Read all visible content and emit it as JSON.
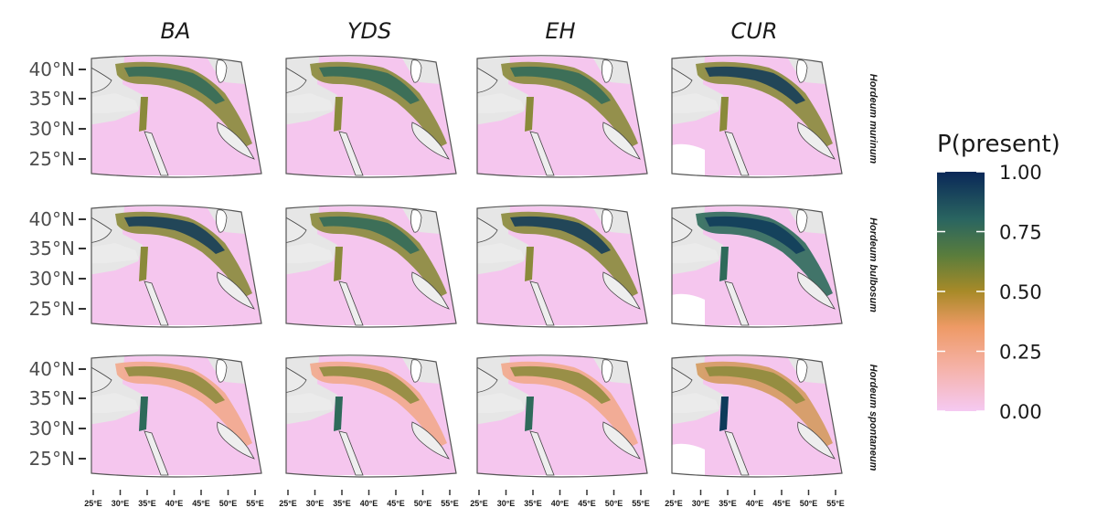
{
  "columns": [
    "BA",
    "YDS",
    "EH",
    "CUR"
  ],
  "rows": [
    "Hordeum murinum",
    "Hordeum bulbosum",
    "Hordeum spontaneum"
  ],
  "lat_ticks": [
    "40°N",
    "35°N",
    "30°N",
    "25°N"
  ],
  "lon_ticks": [
    "25°E",
    "30°E",
    "35°E",
    "40°E",
    "45°E",
    "50°E",
    "55°E"
  ],
  "legend": {
    "title": "P(present)",
    "ticks": [
      "1.00",
      "0.75",
      "0.50",
      "0.25",
      "0.00"
    ],
    "colors": [
      "#f2c8f0",
      "#f5b3b0",
      "#f09a6c",
      "#a3882a",
      "#4f7a3a",
      "#1e5c60",
      "#0b2a5a"
    ]
  },
  "map_colors": {
    "land_gray": "#e6e6e6",
    "sea_gray": "#ebebeb",
    "low": "#f5c6ee",
    "mid_low": "#f2a88c",
    "mid": "#d49a5e",
    "mid_high": "#8a8a3a",
    "high": "#2e6a5a",
    "top": "#0e3a5a"
  },
  "panel_intensity": [
    [
      0.35,
      0.34,
      0.38,
      0.45
    ],
    [
      0.4,
      0.38,
      0.42,
      0.55
    ],
    [
      0.12,
      0.11,
      0.12,
      0.18
    ]
  ]
}
